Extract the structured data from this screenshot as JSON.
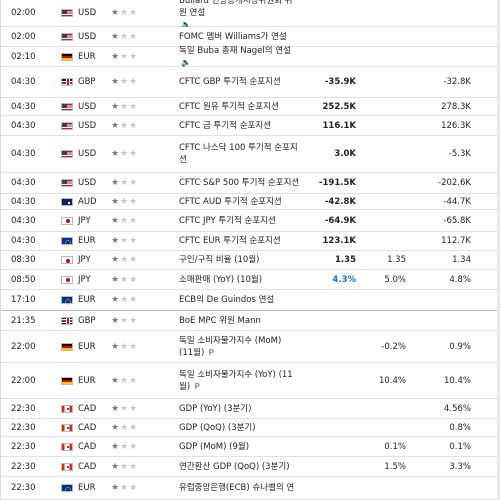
{
  "rows": [
    {
      "time": "02:00",
      "flag": "us-flag-icon",
      "currency": "USD",
      "importance": 1,
      "event_lines": [
        "Bullard 연방공개시장위원회 위",
        "원 연설"
      ],
      "speech": true,
      "prelim": false,
      "actual": "",
      "actual_color": "",
      "forecast": "",
      "previous": ""
    },
    {
      "time": "02:00",
      "flag": "us-flag-icon",
      "currency": "USD",
      "importance": 1,
      "event_lines": [
        "FOMC 멤버 Williams가 연설"
      ],
      "speech": false,
      "prelim": false,
      "actual": "",
      "actual_color": "",
      "forecast": "",
      "previous": ""
    },
    {
      "time": "02:10",
      "flag": "de-flag-icon",
      "currency": "EUR",
      "importance": 1,
      "event_lines": [
        "독일 Buba 총재 Nagel의 연설"
      ],
      "speech": true,
      "prelim": false,
      "actual": "",
      "actual_color": "",
      "forecast": "",
      "previous": ""
    },
    {
      "time": "04:30",
      "flag": "gb-flag-icon",
      "currency": "GBP",
      "importance": 1,
      "event_lines": [
        "CFTC GBP 투기적 순포지션"
      ],
      "speech": false,
      "prelim": false,
      "actual": "-35.9K",
      "actual_color": "neg",
      "forecast": "",
      "previous": "-32.8K"
    },
    {
      "time": "04:30",
      "flag": "us-flag-icon",
      "currency": "USD",
      "importance": 1,
      "event_lines": [
        "CFTC 원유 투기적 순포지션"
      ],
      "speech": false,
      "prelim": false,
      "actual": "252.5K",
      "actual_color": "neg",
      "forecast": "",
      "previous": "278.3K"
    },
    {
      "time": "04:30",
      "flag": "us-flag-icon",
      "currency": "USD",
      "importance": 1,
      "event_lines": [
        "CFTC 금 투기적 순포지션"
      ],
      "speech": false,
      "prelim": false,
      "actual": "116.1K",
      "actual_color": "neg",
      "forecast": "",
      "previous": "126.3K"
    },
    {
      "time": "04:30",
      "flag": "us-flag-icon",
      "currency": "USD",
      "importance": 1,
      "event_lines": [
        "CFTC 나스닥 100 투기적 순포지",
        "션"
      ],
      "speech": false,
      "prelim": false,
      "actual": "3.0K",
      "actual_color": "neg",
      "forecast": "",
      "previous": "-5.3K"
    },
    {
      "time": "04:30",
      "flag": "us-flag-icon",
      "currency": "USD",
      "importance": 1,
      "event_lines": [
        "CFTC S&P 500 투기적 순포지션"
      ],
      "speech": false,
      "prelim": false,
      "actual": "-191.5K",
      "actual_color": "neg",
      "forecast": "",
      "previous": "-202.6K"
    },
    {
      "time": "04:30",
      "flag": "au-flag-icon",
      "currency": "AUD",
      "importance": 1,
      "event_lines": [
        "CFTC AUD 투기적 순포지션"
      ],
      "speech": false,
      "prelim": false,
      "actual": "-42.8K",
      "actual_color": "neg",
      "forecast": "",
      "previous": "-44.7K"
    },
    {
      "time": "04:30",
      "flag": "jp-flag-icon",
      "currency": "JPY",
      "importance": 1,
      "event_lines": [
        "CFTC JPY 투기적 순포지션"
      ],
      "speech": false,
      "prelim": false,
      "actual": "-64.9K",
      "actual_color": "neg",
      "forecast": "",
      "previous": "-65.8K"
    },
    {
      "time": "04:30",
      "flag": "eu-flag-icon",
      "currency": "EUR",
      "importance": 1,
      "event_lines": [
        "CFTC EUR 투기적 순포지션"
      ],
      "speech": false,
      "prelim": false,
      "actual": "123.1K",
      "actual_color": "neg",
      "forecast": "",
      "previous": "112.7K"
    },
    {
      "time": "08:30",
      "flag": "jp-flag-icon",
      "currency": "JPY",
      "importance": 1,
      "event_lines": [
        "구인/구직 비율 (10월)"
      ],
      "speech": false,
      "prelim": false,
      "actual": "1.35",
      "actual_color": "neg",
      "forecast": "1.35",
      "previous": "1.34"
    },
    {
      "time": "08:50",
      "flag": "jp-flag-icon",
      "currency": "JPY",
      "importance": 1,
      "event_lines": [
        "소매판매 (YoY) (10월)"
      ],
      "speech": false,
      "prelim": false,
      "actual": "4.3%",
      "actual_color": "pos",
      "forecast": "5.0%",
      "previous": "4.8%"
    },
    {
      "time": "17:10",
      "flag": "eu-flag-icon",
      "currency": "EUR",
      "importance": 1,
      "event_lines": [
        "ECB의 De Guindos 연설"
      ],
      "speech": false,
      "prelim": false,
      "actual": "",
      "actual_color": "",
      "forecast": "",
      "previous": ""
    },
    {
      "time": "21:35",
      "flag": "gb-flag-icon",
      "currency": "GBP",
      "importance": 1,
      "event_lines": [
        "BoE MPC 위원 Mann"
      ],
      "speech": false,
      "prelim": false,
      "actual": "",
      "actual_color": "",
      "forecast": "",
      "previous": ""
    },
    {
      "time": "22:00",
      "flag": "de-flag-icon",
      "currency": "EUR",
      "importance": 1,
      "event_lines": [
        "독일 소비자물가지수 (MoM)",
        "(11월)"
      ],
      "speech": false,
      "prelim": true,
      "actual": "",
      "actual_color": "",
      "forecast": "-0.2%",
      "previous": "0.9%"
    },
    {
      "time": "22:00",
      "flag": "de-flag-icon",
      "currency": "EUR",
      "importance": 1,
      "event_lines": [
        "독일 소비자물가지수 (YoY) (11",
        "월)"
      ],
      "speech": false,
      "prelim": true,
      "actual": "",
      "actual_color": "",
      "forecast": "10.4%",
      "previous": "10.4%"
    },
    {
      "time": "22:30",
      "flag": "ca-flag-icon",
      "currency": "CAD",
      "importance": 1,
      "event_lines": [
        "GDP (YoY) (3분기)"
      ],
      "speech": false,
      "prelim": false,
      "actual": "",
      "actual_color": "",
      "forecast": "",
      "previous": "4.56%"
    },
    {
      "time": "22:30",
      "flag": "ca-flag-icon",
      "currency": "CAD",
      "importance": 1,
      "event_lines": [
        "GDP (QoQ) (3분기)"
      ],
      "speech": false,
      "prelim": false,
      "actual": "",
      "actual_color": "",
      "forecast": "",
      "previous": "0.8%"
    },
    {
      "time": "22:30",
      "flag": "ca-flag-icon",
      "currency": "CAD",
      "importance": 1,
      "event_lines": [
        "GDP (MoM) (9월)"
      ],
      "speech": false,
      "prelim": false,
      "actual": "",
      "actual_color": "",
      "forecast": "0.1%",
      "previous": "0.1%"
    },
    {
      "time": "22:30",
      "flag": "ca-flag-icon",
      "currency": "CAD",
      "importance": 1,
      "event_lines": [
        "연간환산 GDP (QoQ) (3분기)"
      ],
      "speech": false,
      "prelim": false,
      "actual": "",
      "actual_color": "",
      "forecast": "1.5%",
      "previous": "3.3%"
    },
    {
      "time": "22:30",
      "flag": "eu-flag-icon",
      "currency": "EUR",
      "importance": 1,
      "event_lines": [
        "유럽중앙은행(ECB) 슈나벨의 연"
      ],
      "speech": false,
      "prelim": false,
      "actual": "",
      "actual_color": "",
      "forecast": "",
      "previous": ""
    }
  ],
  "symbols": {
    "star": "★",
    "speech": "🔈",
    "prelim": "P"
  }
}
